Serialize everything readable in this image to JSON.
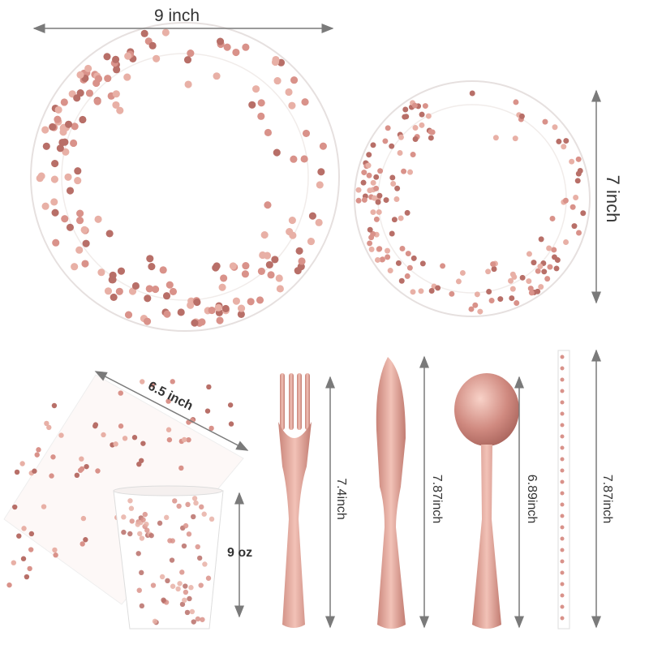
{
  "colors": {
    "rose_gold": "#d9928a",
    "rose_dark": "#b86f68",
    "arrow": "#7a7a7a",
    "plate": "#ffffff"
  },
  "labels": {
    "large_plate": "9 inch",
    "small_plate": "7 inch",
    "napkin": "6.5 inch",
    "cup": "9 oz",
    "fork": "7.4inch",
    "knife": "7.87inch",
    "spoon": "6.89inch",
    "straw": "7.87inch"
  }
}
